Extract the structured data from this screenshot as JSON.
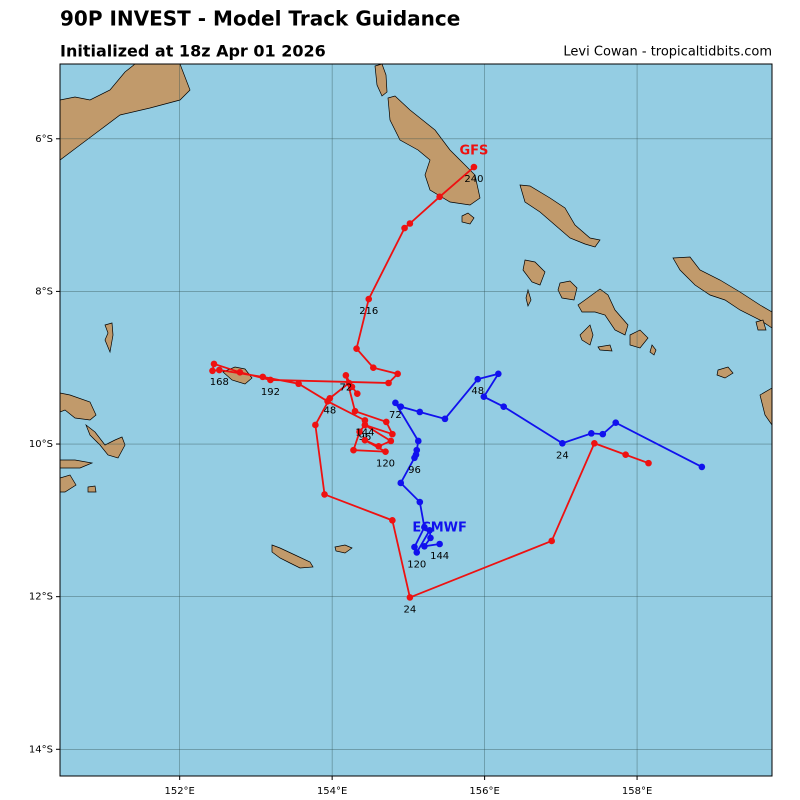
{
  "chart_data": {
    "type": "track",
    "title": "90P INVEST - Model Track Guidance",
    "subtitle": "Initialized at 18z Apr 01 2026",
    "credit": "Levi Cowan - tropicaltidbits.com",
    "xlim": [
      150.43,
      159.77
    ],
    "ylim": [
      -14.35,
      -5.02
    ],
    "xticks": [
      {
        "value": 152,
        "label": "152°E"
      },
      {
        "value": 154,
        "label": "154°E"
      },
      {
        "value": 156,
        "label": "156°E"
      },
      {
        "value": 158,
        "label": "158°E"
      }
    ],
    "yticks": [
      {
        "value": -6,
        "label": "6°S"
      },
      {
        "value": -8,
        "label": "8°S"
      },
      {
        "value": -10,
        "label": "10°S"
      },
      {
        "value": -12,
        "label": "12°S"
      },
      {
        "value": -14,
        "label": "14°S"
      }
    ],
    "grid": true,
    "series": [
      {
        "name": "GFS",
        "color": "#ee1111",
        "x": [
          158.15,
          157.85,
          157.44,
          156.88,
          155.02,
          154.79,
          153.9,
          153.78,
          153.97,
          154.22,
          154.33,
          154.26,
          154.18,
          154.3,
          154.71,
          154.79,
          154.43,
          154.77,
          154.61,
          154.43,
          154.7,
          154.28,
          154.36,
          154.43,
          154.43,
          153.94,
          153.56,
          153.09,
          152.52,
          152.43,
          152.45,
          152.79,
          153.19,
          154.74,
          154.86,
          154.54,
          154.32,
          154.48,
          154.95,
          155.02,
          155.41,
          155.86
        ],
        "values": [
          -10.25,
          -10.14,
          -9.99,
          -11.27,
          -12.01,
          -11.0,
          -10.66,
          -9.75,
          -9.4,
          -9.2,
          -9.34,
          -9.25,
          -9.1,
          -9.57,
          -9.71,
          -9.87,
          -9.75,
          -9.96,
          -10.03,
          -9.95,
          -10.1,
          -10.08,
          -9.84,
          -9.75,
          -9.69,
          -9.44,
          -9.21,
          -9.12,
          -9.03,
          -9.04,
          -8.95,
          -9.06,
          -9.16,
          -9.2,
          -9.08,
          -9.0,
          -8.75,
          -8.1,
          -7.17,
          -7.11,
          -6.76,
          -6.37
        ],
        "point_labels": [
          null,
          null,
          null,
          null,
          24,
          null,
          null,
          null,
          48,
          null,
          null,
          null,
          72,
          null,
          null,
          null,
          96,
          null,
          null,
          null,
          120,
          null,
          null,
          null,
          144,
          null,
          null,
          null,
          168,
          null,
          null,
          null,
          192,
          null,
          null,
          null,
          null,
          216,
          null,
          null,
          null,
          240
        ]
      },
      {
        "name": "ECMWF",
        "color": "#1111ee",
        "x": [
          158.85,
          157.72,
          157.55,
          157.4,
          157.02,
          156.25,
          155.99,
          156.18,
          155.91,
          155.48,
          155.15,
          154.9,
          154.83,
          155.13,
          155.11,
          155.1,
          155.08,
          154.9,
          155.15,
          155.21,
          155.08,
          155.11,
          155.28,
          155.29,
          155.21,
          155.41
        ],
        "values": [
          -10.3,
          -9.72,
          -9.87,
          -9.86,
          -9.99,
          -9.51,
          -9.38,
          -9.08,
          -9.15,
          -9.67,
          -9.58,
          -9.51,
          -9.46,
          -9.96,
          -10.08,
          -10.14,
          -10.18,
          -10.51,
          -10.76,
          -11.09,
          -11.35,
          -11.42,
          -11.13,
          -11.23,
          -11.34,
          -11.31
        ],
        "point_labels": [
          null,
          null,
          null,
          null,
          24,
          null,
          null,
          null,
          48,
          null,
          null,
          null,
          72,
          null,
          null,
          null,
          96,
          null,
          null,
          null,
          null,
          120,
          null,
          null,
          null,
          144
        ]
      }
    ]
  }
}
